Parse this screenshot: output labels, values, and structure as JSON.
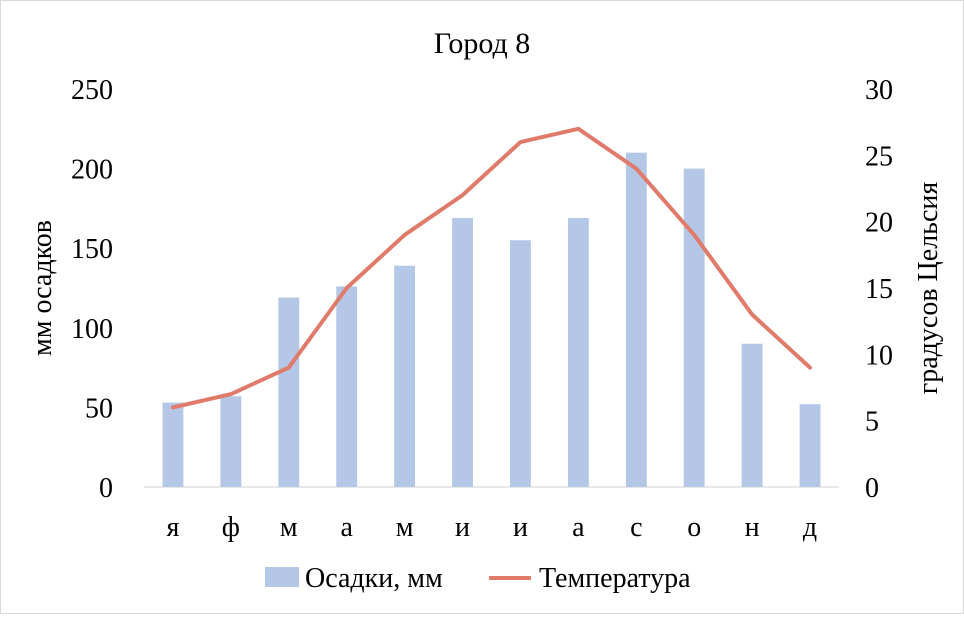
{
  "chart_data": {
    "type": "bar",
    "title": "Город 8",
    "categories": [
      "я",
      "ф",
      "м",
      "а",
      "м",
      "и",
      "и",
      "а",
      "с",
      "о",
      "н",
      "д"
    ],
    "ylabel_left": "мм осадков",
    "ylabel_right": "градусов Цельсия",
    "left_axis": {
      "min": 0,
      "max": 250,
      "ticks": [
        0,
        50,
        100,
        150,
        200,
        250
      ]
    },
    "right_axis": {
      "min": 0,
      "max": 30,
      "ticks": [
        0,
        5,
        10,
        15,
        20,
        25,
        30
      ]
    },
    "grid": false,
    "legend_position": "bottom",
    "series": [
      {
        "name": "Осадки, мм",
        "type": "bar",
        "axis": "left",
        "color": "#b4c7e7",
        "values": [
          53,
          57,
          119,
          126,
          139,
          169,
          155,
          169,
          210,
          200,
          90,
          52
        ]
      },
      {
        "name": "Температура",
        "type": "line",
        "axis": "right",
        "color": "#e07a6b",
        "values": [
          6,
          7,
          9,
          15,
          19,
          22,
          26,
          27,
          24,
          19,
          13,
          9
        ]
      }
    ]
  }
}
